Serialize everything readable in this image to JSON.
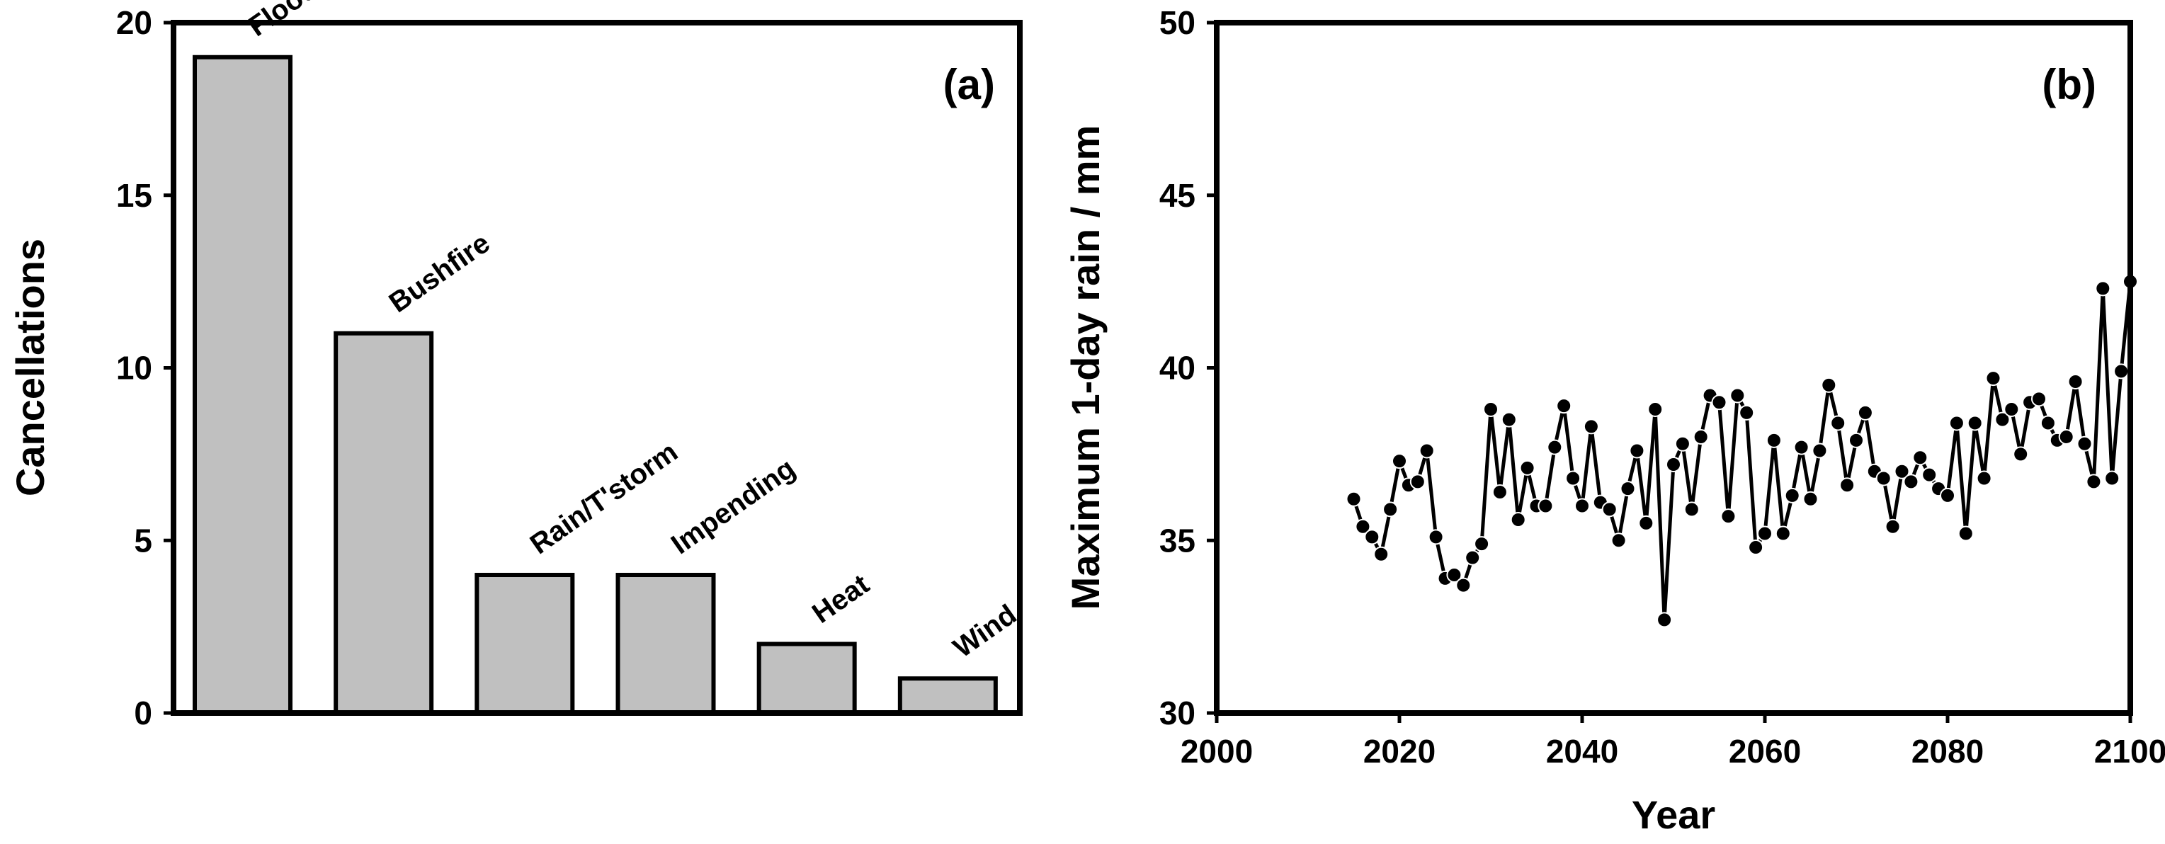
{
  "chart_data": [
    {
      "type": "bar",
      "panel_label": "(a)",
      "ylabel": "Cancellations",
      "xlabel": "",
      "categories": [
        "Flood",
        "Bushfire",
        "Rain/T'storm",
        "Impending",
        "Heat",
        "Wind"
      ],
      "values": [
        19,
        11,
        4,
        4,
        2,
        1
      ],
      "ylim": [
        0,
        20
      ],
      "yticks": [
        0,
        5,
        10,
        15,
        20
      ],
      "bar_color": "#c0c0c0",
      "grid": false,
      "legend": "none"
    },
    {
      "type": "line",
      "panel_label": "(b)",
      "xlabel": "Year",
      "ylabel": "Maximum 1-day rain / mm",
      "xlim": [
        2000,
        2100
      ],
      "ylim": [
        30,
        50
      ],
      "xticks": [
        2000,
        2020,
        2040,
        2060,
        2080,
        2100
      ],
      "yticks": [
        30,
        35,
        40,
        45,
        50
      ],
      "markers": true,
      "line_color": "#000000",
      "grid": false,
      "legend": "none",
      "series": [
        {
          "x": [
            2015,
            2016,
            2017,
            2018,
            2019,
            2020,
            2021,
            2022,
            2023,
            2024,
            2025,
            2026,
            2027,
            2028,
            2029,
            2030,
            2031,
            2032,
            2033,
            2034,
            2035,
            2036,
            2037,
            2038,
            2039,
            2040,
            2041,
            2042,
            2043,
            2044,
            2045,
            2046,
            2047,
            2048,
            2049,
            2050,
            2051,
            2052,
            2053,
            2054,
            2055,
            2056,
            2057,
            2058,
            2059,
            2060,
            2061,
            2062,
            2063,
            2064,
            2065,
            2066,
            2067,
            2068,
            2069,
            2070,
            2071,
            2072,
            2073,
            2074,
            2075,
            2076,
            2077,
            2078,
            2079,
            2080,
            2081,
            2082,
            2083,
            2084,
            2085,
            2086,
            2087,
            2088,
            2089,
            2090,
            2091,
            2092,
            2093,
            2094,
            2095,
            2096,
            2097,
            2098,
            2099,
            2100
          ],
          "y": [
            36.2,
            35.4,
            35.1,
            34.6,
            35.9,
            37.3,
            36.6,
            36.7,
            37.6,
            35.1,
            33.9,
            34.0,
            33.7,
            34.5,
            34.9,
            38.8,
            36.4,
            38.5,
            35.6,
            37.1,
            36.0,
            36.0,
            37.7,
            38.9,
            36.8,
            36.0,
            38.3,
            36.1,
            35.9,
            35.0,
            36.5,
            37.6,
            35.5,
            38.8,
            32.7,
            37.2,
            37.8,
            35.9,
            38.0,
            39.2,
            39.0,
            35.7,
            39.2,
            38.7,
            34.8,
            35.2,
            37.9,
            35.2,
            36.3,
            37.7,
            36.2,
            37.6,
            39.5,
            38.4,
            36.6,
            37.9,
            38.7,
            37.0,
            36.8,
            35.4,
            37.0,
            36.7,
            37.4,
            36.9,
            36.5,
            36.3,
            38.4,
            35.2,
            38.4,
            36.8,
            39.7,
            38.5,
            38.8,
            37.5,
            39.0,
            39.1,
            38.4,
            37.9,
            38.0,
            39.6,
            37.8,
            36.7,
            42.3,
            36.8,
            39.9,
            42.5
          ]
        }
      ]
    }
  ]
}
